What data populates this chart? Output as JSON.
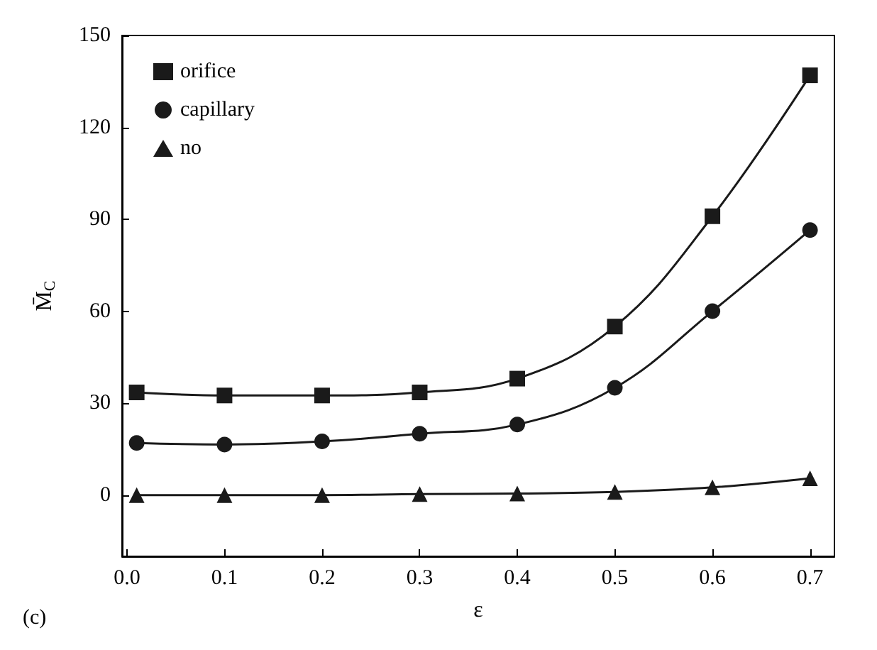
{
  "chart_data": {
    "type": "line",
    "xlabel": "ε",
    "ylabel": "M̄$_{C}$",
    "x": [
      0.01,
      0.1,
      0.2,
      0.3,
      0.4,
      0.5,
      0.6,
      0.7
    ],
    "series": [
      {
        "name": "orifice",
        "color": "#1a1a1a",
        "marker": "square",
        "values": [
          33.5,
          32.5,
          32.5,
          33.5,
          38,
          55,
          91,
          137
        ]
      },
      {
        "name": "capillary",
        "color": "#1a1a1a",
        "marker": "circle",
        "values": [
          17,
          16.5,
          17.5,
          20,
          23,
          35,
          60,
          86.5
        ]
      },
      {
        "name": "no",
        "color": "#1a1a1a",
        "marker": "triangle",
        "values": [
          0,
          0,
          0,
          0.3,
          0.5,
          1,
          2.5,
          5.5
        ]
      }
    ],
    "xlim": [
      -0.005,
      0.725
    ],
    "ylim": [
      -20,
      150
    ],
    "xticks": [
      {
        "value": 0,
        "label": "0.0"
      },
      {
        "value": 0.1,
        "label": "0.1"
      },
      {
        "value": 0.2,
        "label": "0.2"
      },
      {
        "value": 0.3,
        "label": "0.3"
      },
      {
        "value": 0.4,
        "label": "0.4"
      },
      {
        "value": 0.5,
        "label": "0.5"
      },
      {
        "value": 0.6,
        "label": "0.6"
      },
      {
        "value": 0.7,
        "label": "0.7"
      }
    ],
    "yticks": [
      0,
      30,
      60,
      90,
      120,
      150
    ],
    "legend": "top left",
    "grid": false,
    "line_style": "solid",
    "annotations": [
      "(c)"
    ]
  }
}
